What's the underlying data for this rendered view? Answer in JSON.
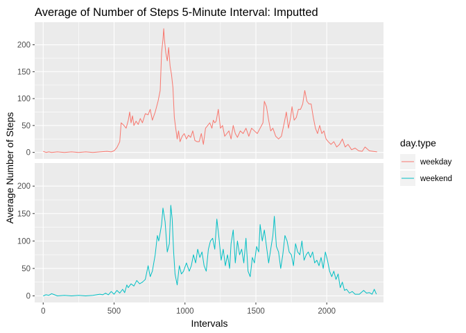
{
  "chart_data": {
    "type": "line",
    "title": "Average of Number of Steps 5-Minute Interval: Imputted",
    "xlabel": "Intervals",
    "ylabel": "Average Number of Steps",
    "xlim": [
      -60,
      2400
    ],
    "ylim": [
      -12,
      242
    ],
    "x_ticks": [
      0,
      500,
      1000,
      1500,
      2000
    ],
    "x_tick_labels": [
      "0",
      "500",
      "1000",
      "1500",
      "2000"
    ],
    "y_ticks": [
      0,
      50,
      100,
      150,
      200
    ],
    "y_tick_labels": [
      "0",
      "50",
      "100",
      "150",
      "200"
    ],
    "grid": true,
    "facet": "rows",
    "legend": {
      "title": "day.type",
      "position": "right",
      "entries": [
        "weekday",
        "weekend"
      ]
    },
    "series": [
      {
        "name": "weekday",
        "color": "#F8766D",
        "points": [
          [
            0,
            2
          ],
          [
            20,
            0
          ],
          [
            40,
            1
          ],
          [
            60,
            0
          ],
          [
            100,
            1
          ],
          [
            150,
            0
          ],
          [
            200,
            1
          ],
          [
            250,
            0
          ],
          [
            300,
            1
          ],
          [
            350,
            0
          ],
          [
            400,
            1
          ],
          [
            450,
            2
          ],
          [
            480,
            1
          ],
          [
            500,
            3
          ],
          [
            520,
            9
          ],
          [
            540,
            20
          ],
          [
            550,
            55
          ],
          [
            570,
            50
          ],
          [
            585,
            45
          ],
          [
            600,
            60
          ],
          [
            610,
            75
          ],
          [
            620,
            55
          ],
          [
            630,
            68
          ],
          [
            640,
            50
          ],
          [
            655,
            58
          ],
          [
            670,
            52
          ],
          [
            685,
            63
          ],
          [
            700,
            55
          ],
          [
            720,
            72
          ],
          [
            740,
            70
          ],
          [
            755,
            80
          ],
          [
            770,
            60
          ],
          [
            790,
            75
          ],
          [
            810,
            95
          ],
          [
            825,
            115
          ],
          [
            835,
            185
          ],
          [
            845,
            210
          ],
          [
            850,
            230
          ],
          [
            855,
            210
          ],
          [
            865,
            185
          ],
          [
            875,
            170
          ],
          [
            885,
            195
          ],
          [
            895,
            160
          ],
          [
            905,
            145
          ],
          [
            915,
            120
          ],
          [
            925,
            65
          ],
          [
            935,
            45
          ],
          [
            945,
            25
          ],
          [
            955,
            40
          ],
          [
            965,
            20
          ],
          [
            980,
            30
          ],
          [
            995,
            35
          ],
          [
            1010,
            25
          ],
          [
            1025,
            32
          ],
          [
            1040,
            28
          ],
          [
            1055,
            40
          ],
          [
            1070,
            22
          ],
          [
            1085,
            20
          ],
          [
            1100,
            20
          ],
          [
            1115,
            35
          ],
          [
            1130,
            15
          ],
          [
            1145,
            45
          ],
          [
            1160,
            50
          ],
          [
            1175,
            55
          ],
          [
            1190,
            45
          ],
          [
            1200,
            60
          ],
          [
            1210,
            55
          ],
          [
            1220,
            58
          ],
          [
            1235,
            80
          ],
          [
            1250,
            45
          ],
          [
            1265,
            50
          ],
          [
            1280,
            30
          ],
          [
            1295,
            35
          ],
          [
            1310,
            40
          ],
          [
            1325,
            25
          ],
          [
            1340,
            50
          ],
          [
            1355,
            35
          ],
          [
            1370,
            28
          ],
          [
            1390,
            40
          ],
          [
            1410,
            35
          ],
          [
            1430,
            45
          ],
          [
            1450,
            30
          ],
          [
            1470,
            45
          ],
          [
            1490,
            40
          ],
          [
            1510,
            35
          ],
          [
            1530,
            45
          ],
          [
            1550,
            55
          ],
          [
            1560,
            95
          ],
          [
            1575,
            85
          ],
          [
            1590,
            60
          ],
          [
            1605,
            40
          ],
          [
            1620,
            45
          ],
          [
            1640,
            30
          ],
          [
            1660,
            25
          ],
          [
            1680,
            30
          ],
          [
            1700,
            55
          ],
          [
            1715,
            75
          ],
          [
            1730,
            45
          ],
          [
            1745,
            65
          ],
          [
            1755,
            85
          ],
          [
            1770,
            60
          ],
          [
            1785,
            65
          ],
          [
            1800,
            80
          ],
          [
            1815,
            80
          ],
          [
            1830,
            90
          ],
          [
            1845,
            115
          ],
          [
            1860,
            95
          ],
          [
            1875,
            90
          ],
          [
            1890,
            90
          ],
          [
            1905,
            65
          ],
          [
            1920,
            45
          ],
          [
            1935,
            35
          ],
          [
            1950,
            50
          ],
          [
            1965,
            35
          ],
          [
            1980,
            40
          ],
          [
            1995,
            25
          ],
          [
            2010,
            20
          ],
          [
            2030,
            15
          ],
          [
            2050,
            20
          ],
          [
            2070,
            10
          ],
          [
            2090,
            15
          ],
          [
            2110,
            25
          ],
          [
            2130,
            10
          ],
          [
            2150,
            15
          ],
          [
            2175,
            5
          ],
          [
            2200,
            8
          ],
          [
            2225,
            3
          ],
          [
            2250,
            2
          ],
          [
            2270,
            10
          ],
          [
            2300,
            3
          ],
          [
            2325,
            2
          ],
          [
            2355,
            1
          ]
        ]
      },
      {
        "name": "weekend",
        "color": "#00BFC4",
        "points": [
          [
            0,
            0
          ],
          [
            20,
            2
          ],
          [
            40,
            1
          ],
          [
            60,
            4
          ],
          [
            80,
            2
          ],
          [
            100,
            0
          ],
          [
            150,
            1
          ],
          [
            200,
            0
          ],
          [
            250,
            1
          ],
          [
            300,
            0
          ],
          [
            350,
            1
          ],
          [
            400,
            3
          ],
          [
            420,
            2
          ],
          [
            440,
            5
          ],
          [
            460,
            2
          ],
          [
            480,
            8
          ],
          [
            500,
            3
          ],
          [
            520,
            10
          ],
          [
            540,
            5
          ],
          [
            560,
            12
          ],
          [
            575,
            6
          ],
          [
            590,
            20
          ],
          [
            600,
            15
          ],
          [
            620,
            22
          ],
          [
            640,
            18
          ],
          [
            660,
            28
          ],
          [
            680,
            22
          ],
          [
            700,
            25
          ],
          [
            720,
            30
          ],
          [
            740,
            55
          ],
          [
            755,
            35
          ],
          [
            770,
            45
          ],
          [
            790,
            75
          ],
          [
            805,
            110
          ],
          [
            815,
            100
          ],
          [
            825,
            115
          ],
          [
            835,
            130
          ],
          [
            845,
            160
          ],
          [
            860,
            135
          ],
          [
            875,
            80
          ],
          [
            890,
            95
          ],
          [
            900,
            165
          ],
          [
            910,
            140
          ],
          [
            920,
            80
          ],
          [
            930,
            40
          ],
          [
            945,
            20
          ],
          [
            960,
            55
          ],
          [
            975,
            40
          ],
          [
            990,
            45
          ],
          [
            1010,
            60
          ],
          [
            1030,
            45
          ],
          [
            1045,
            55
          ],
          [
            1060,
            75
          ],
          [
            1075,
            60
          ],
          [
            1090,
            85
          ],
          [
            1105,
            70
          ],
          [
            1120,
            80
          ],
          [
            1135,
            55
          ],
          [
            1150,
            45
          ],
          [
            1165,
            85
          ],
          [
            1180,
            100
          ],
          [
            1195,
            105
          ],
          [
            1210,
            85
          ],
          [
            1225,
            140
          ],
          [
            1240,
            105
          ],
          [
            1255,
            65
          ],
          [
            1270,
            85
          ],
          [
            1285,
            55
          ],
          [
            1300,
            75
          ],
          [
            1315,
            50
          ],
          [
            1325,
            95
          ],
          [
            1340,
            120
          ],
          [
            1355,
            60
          ],
          [
            1370,
            100
          ],
          [
            1385,
            75
          ],
          [
            1400,
            85
          ],
          [
            1415,
            60
          ],
          [
            1430,
            105
          ],
          [
            1445,
            45
          ],
          [
            1460,
            35
          ],
          [
            1475,
            70
          ],
          [
            1490,
            60
          ],
          [
            1505,
            90
          ],
          [
            1520,
            80
          ],
          [
            1530,
            130
          ],
          [
            1545,
            100
          ],
          [
            1560,
            120
          ],
          [
            1575,
            90
          ],
          [
            1590,
            60
          ],
          [
            1605,
            85
          ],
          [
            1620,
            110
          ],
          [
            1630,
            145
          ],
          [
            1645,
            90
          ],
          [
            1660,
            80
          ],
          [
            1675,
            50
          ],
          [
            1690,
            75
          ],
          [
            1705,
            110
          ],
          [
            1720,
            100
          ],
          [
            1735,
            80
          ],
          [
            1750,
            75
          ],
          [
            1765,
            55
          ],
          [
            1780,
            95
          ],
          [
            1795,
            80
          ],
          [
            1810,
            75
          ],
          [
            1825,
            100
          ],
          [
            1840,
            65
          ],
          [
            1855,
            75
          ],
          [
            1870,
            80
          ],
          [
            1885,
            70
          ],
          [
            1900,
            80
          ],
          [
            1915,
            60
          ],
          [
            1930,
            65
          ],
          [
            1945,
            55
          ],
          [
            1960,
            70
          ],
          [
            1975,
            50
          ],
          [
            1990,
            80
          ],
          [
            2005,
            65
          ],
          [
            2020,
            45
          ],
          [
            2035,
            35
          ],
          [
            2050,
            45
          ],
          [
            2065,
            30
          ],
          [
            2080,
            40
          ],
          [
            2095,
            15
          ],
          [
            2110,
            25
          ],
          [
            2125,
            10
          ],
          [
            2140,
            12
          ],
          [
            2160,
            5
          ],
          [
            2180,
            8
          ],
          [
            2200,
            3
          ],
          [
            2230,
            3
          ],
          [
            2260,
            10
          ],
          [
            2280,
            5
          ],
          [
            2300,
            6
          ],
          [
            2320,
            3
          ],
          [
            2335,
            12
          ],
          [
            2350,
            3
          ]
        ]
      }
    ]
  }
}
